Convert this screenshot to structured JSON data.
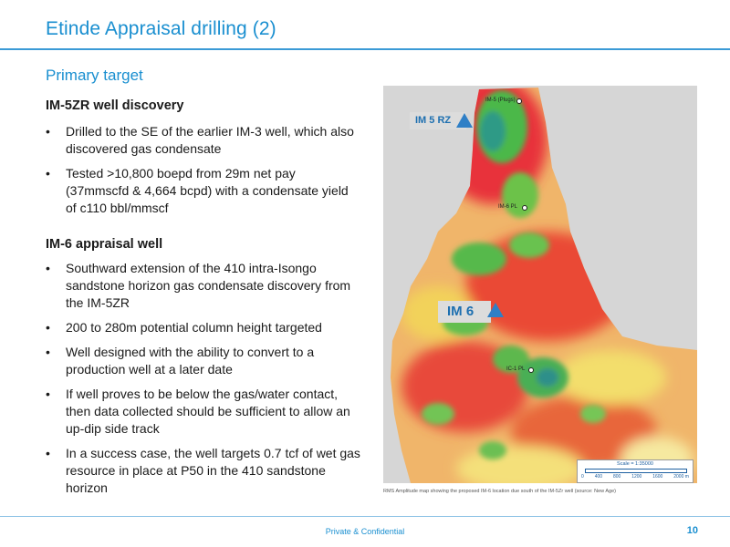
{
  "header": {
    "title": "Etinde Appraisal drilling (2)"
  },
  "subtitle": "Primary target",
  "sections": [
    {
      "heading": "IM-5ZR well discovery",
      "bullets": [
        "Drilled to the SE of the earlier IM-3 well, which also discovered gas condensate",
        "Tested >10,800 boepd from 29m net pay (37mmscfd & 4,664 bcpd) with a condensate yield of c110 bbl/mmscf"
      ]
    },
    {
      "heading": "IM-6 appraisal well",
      "bullets": [
        "Southward extension of the 410 intra-Isongo sandstone horizon gas condensate discovery from the IM-5ZR",
        "200 to 280m potential column height targeted",
        "Well designed with the ability to convert to a production well at a later date",
        "If well proves to be below the gas/water contact, then data collected should be sufficient to allow an up-dip side track",
        "In a success case, the well targets 0.7 tcf of wet gas resource in place at P50 in the 410 sandstone horizon"
      ]
    }
  ],
  "map": {
    "labels": {
      "im5rz": "IM 5 RZ",
      "im6": "IM 6"
    },
    "wells": {
      "top": "IM-5 (Plugs)",
      "mid": "IM-6 PL",
      "lower": "IC-1 PL"
    },
    "scale": {
      "title": "Scale = 1:35000",
      "ticks": [
        "0",
        "400",
        "800",
        "1200",
        "1600",
        "2000 m"
      ]
    },
    "caption": "RMS Amplitude map showing the proposed IM-6 location due south of the IM-5Zr well (source: New Age)"
  },
  "footer": {
    "confidential": "Private & Confidential",
    "page_number": "10"
  },
  "colors": {
    "accent": "#1a8fd0",
    "marker": "#2f7fc6"
  }
}
